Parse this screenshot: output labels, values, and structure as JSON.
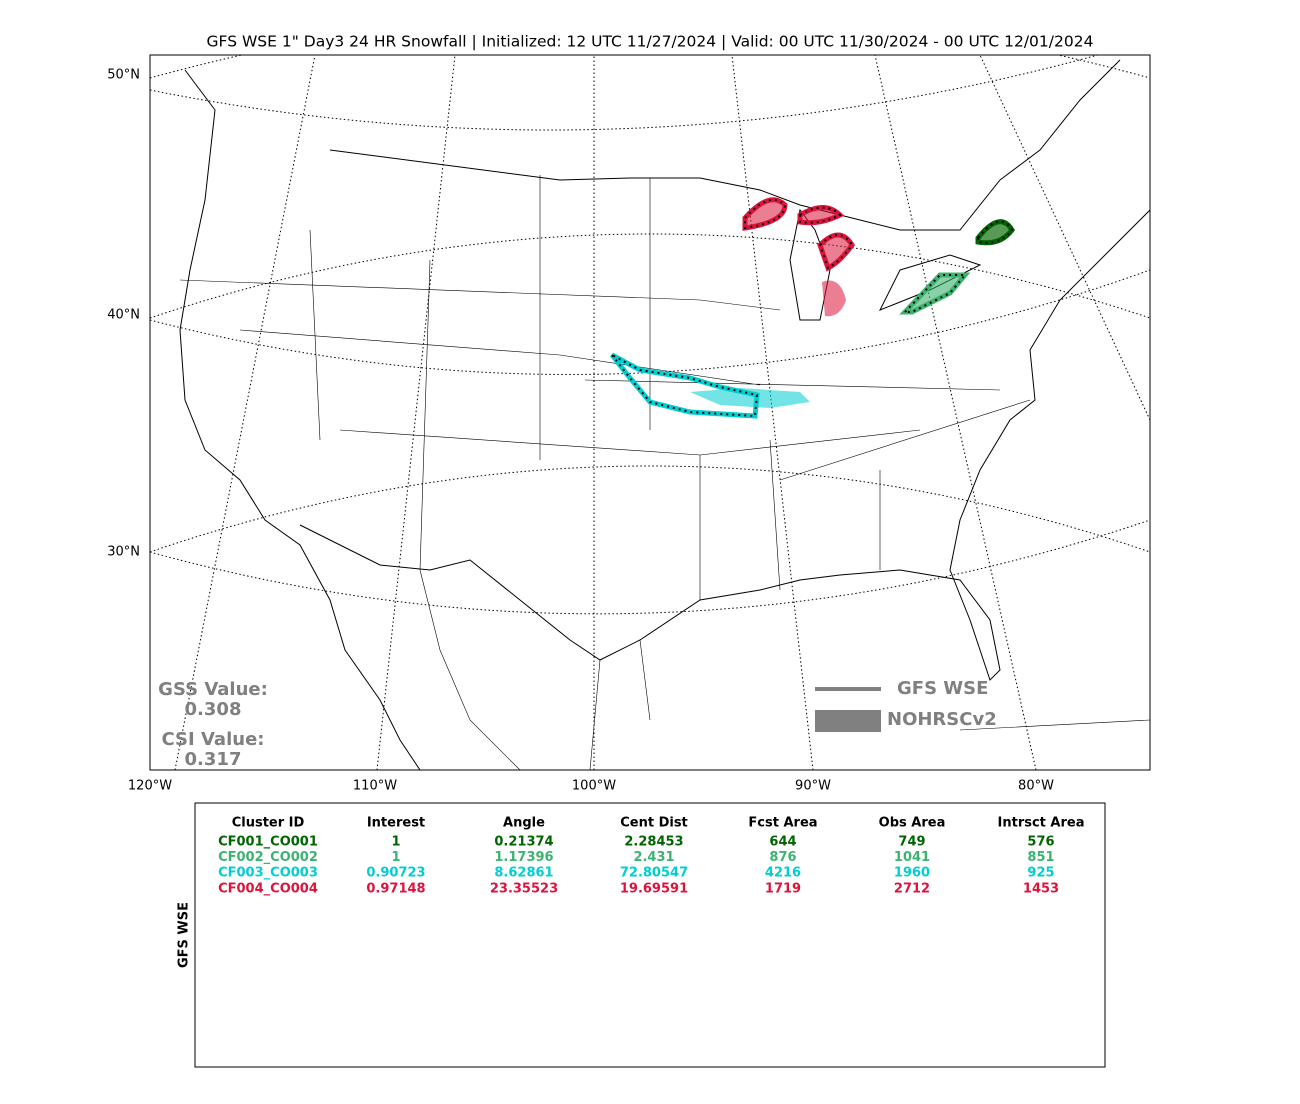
{
  "title": "GFS WSE 1\" Day3 24 HR Snowfall | Initialized: 12 UTC 11/27/2024 | Valid: 00 UTC 11/30/2024 - 00 UTC 12/01/2024",
  "map": {
    "lat_labels": [
      "50°N",
      "40°N",
      "30°N"
    ],
    "lon_labels": [
      "120°W",
      "110°W",
      "100°W",
      "90°W",
      "80°W"
    ]
  },
  "scores": {
    "gss_label": "GSS Value:",
    "gss_value": "0.308",
    "csi_label": "CSI Value:",
    "csi_value": "0.317",
    "color": "#808080"
  },
  "legend": [
    {
      "label": "GFS WSE",
      "style": "line",
      "color": "#808080"
    },
    {
      "label": "NOHRSCv2",
      "style": "fill",
      "color": "#808080"
    }
  ],
  "table": {
    "side_label": "GFS WSE",
    "columns": [
      "Cluster ID",
      "Interest",
      "Angle",
      "Cent Dist",
      "Fcst Area",
      "Obs Area",
      "Intrsct Area"
    ],
    "rows": [
      {
        "color": "#006400",
        "cells": [
          "CF001_CO001",
          1,
          0.21374,
          2.28453,
          644,
          749,
          576
        ]
      },
      {
        "color": "#3cb371",
        "cells": [
          "CF002_CO002",
          1,
          1.17396,
          2.431,
          876,
          1041,
          851
        ]
      },
      {
        "color": "#00ced1",
        "cells": [
          "CF003_CO003",
          0.90723,
          8.62861,
          72.80547,
          4216,
          1960,
          925
        ]
      },
      {
        "color": "#dc143c",
        "cells": [
          "CF004_CO004",
          0.97148,
          23.35523,
          19.69591,
          1719,
          2712,
          1453
        ]
      }
    ]
  }
}
